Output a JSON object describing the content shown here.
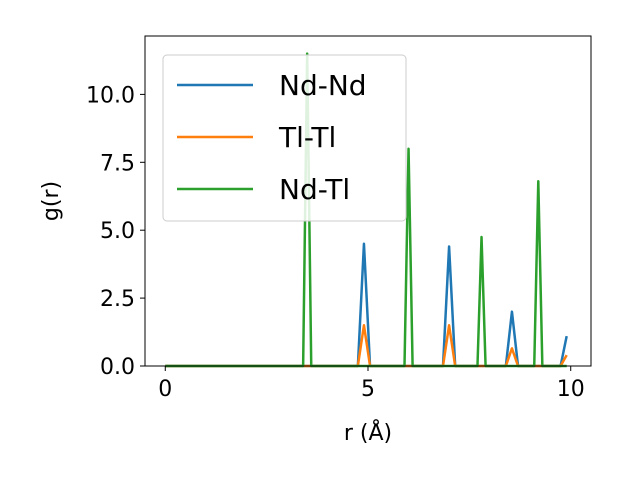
{
  "chart_data": {
    "type": "line",
    "title": "",
    "xlabel": "r (Å)",
    "ylabel": "g(r)",
    "xlim": [
      -0.5,
      10.5
    ],
    "ylim": [
      0,
      12.15
    ],
    "xticks": [
      0,
      5,
      10
    ],
    "xtick_labels": [
      "0",
      "5",
      "10"
    ],
    "yticks": [
      0,
      2.5,
      5,
      7.5,
      10
    ],
    "ytick_labels": [
      "0.0",
      "2.5",
      "5.0",
      "7.5",
      "10.0"
    ],
    "grid": false,
    "legend_position": "top-left",
    "series": [
      {
        "name": "Nd-Nd",
        "color": "#1f77b4",
        "x": [
          0,
          4.75,
          4.9,
          5.05,
          6.85,
          7.0,
          7.15,
          8.4,
          8.55,
          8.7,
          9.75,
          9.9
        ],
        "y": [
          0,
          0,
          4.5,
          0,
          0,
          4.4,
          0,
          0,
          2.0,
          0,
          0,
          1.1
        ]
      },
      {
        "name": "Tl-Tl",
        "color": "#ff7f0e",
        "x": [
          0,
          4.75,
          4.9,
          5.05,
          6.85,
          7.0,
          7.15,
          8.4,
          8.55,
          8.7,
          9.75,
          9.9
        ],
        "y": [
          0,
          0,
          1.5,
          0,
          0,
          1.5,
          0,
          0,
          0.65,
          0,
          0,
          0.4
        ]
      },
      {
        "name": "Nd-Tl",
        "color": "#2ca02c",
        "x": [
          0,
          3.4,
          3.5,
          3.6,
          5.9,
          6.0,
          6.1,
          7.7,
          7.8,
          7.9,
          9.1,
          9.2,
          9.3,
          9.9
        ],
        "y": [
          0,
          0,
          11.5,
          0,
          0,
          8.0,
          0,
          0,
          4.75,
          0,
          0,
          6.8,
          0,
          0
        ]
      }
    ]
  }
}
